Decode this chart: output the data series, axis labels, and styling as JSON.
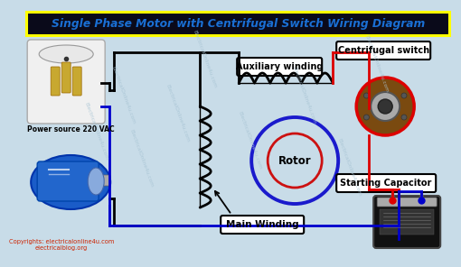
{
  "title": "Single Phase Motor with Centrifugal Switch Wiring Diagram",
  "title_color": "#1a6fd4",
  "title_bg": "#0a0a1a",
  "title_border": "#FFFF00",
  "title_fontsize": 8.8,
  "bg_color": "#c8dce8",
  "labels": {
    "auxiliary_winding": "Auxiliary winding",
    "centrifugal_switch": "Centrifugal switch",
    "main_winding": "Main Winding",
    "starting_capacitor": "Starting Capacitor",
    "rotor": "Rotor",
    "power_source": "Power source 220 VAC",
    "copyright1": "Copyrights: electricalonline4u.com",
    "copyright2": "electricalblog.org"
  },
  "wire_black": "#000000",
  "wire_red": "#dd0000",
  "wire_blue": "#0000cc",
  "rotor_outer": "#1a1acc",
  "rotor_inner": "#cc1111",
  "coil_color": "#111111",
  "wm_color": "#a8c4d4",
  "plug_body": "#e8e8e8",
  "plug_prong": "#c8a830",
  "motor_body": "#1155cc",
  "centswitch_outer": "#7a4a10",
  "centswitch_inner": "#888888",
  "cap_body": "#111111",
  "cap_label": "#888888"
}
